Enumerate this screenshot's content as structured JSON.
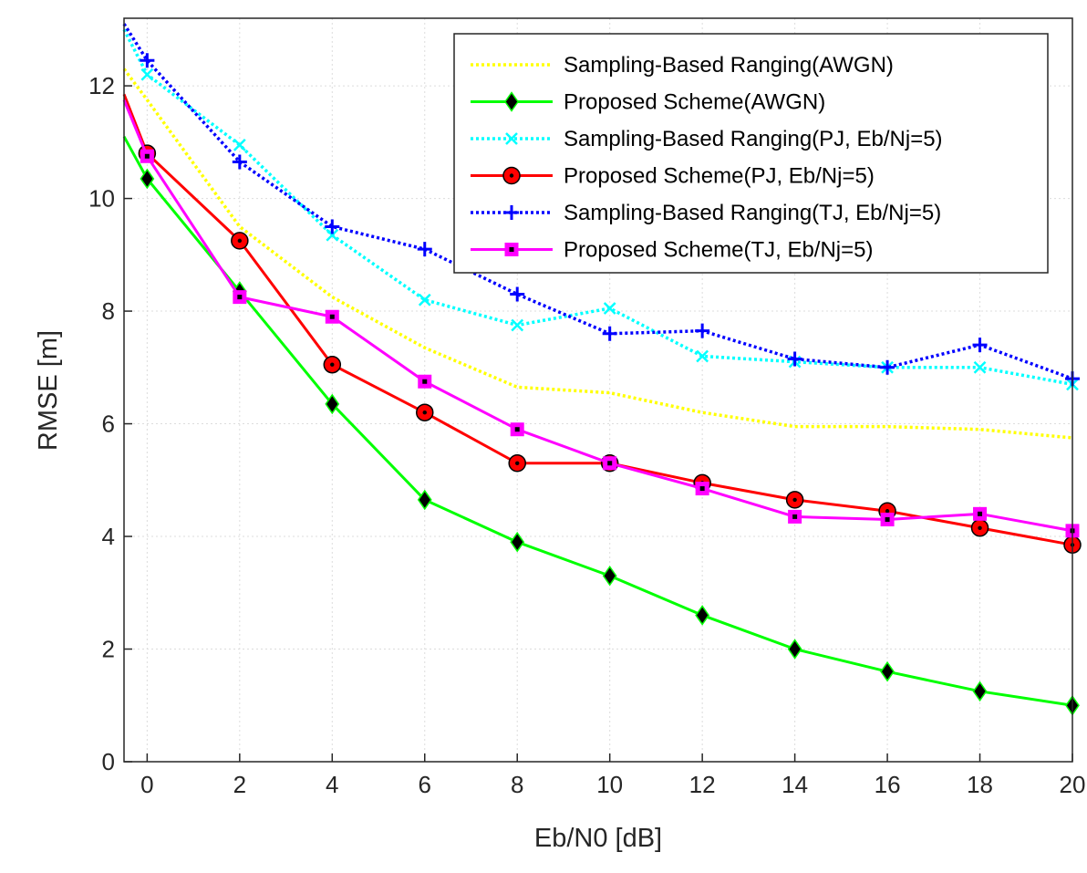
{
  "chart_data": {
    "type": "line",
    "xlabel": "Eb/N0 [dB]",
    "ylabel": "RMSE [m]",
    "xlim": [
      -0.5,
      20
    ],
    "ylim": [
      0,
      13.2
    ],
    "x_ticks": [
      0,
      2,
      4,
      6,
      8,
      10,
      12,
      14,
      16,
      18,
      20
    ],
    "y_ticks": [
      0,
      2,
      4,
      6,
      8,
      10,
      12
    ],
    "grid": true,
    "legend_position": "top-right",
    "x": [
      0,
      2,
      4,
      6,
      8,
      10,
      12,
      14,
      16,
      18,
      20
    ],
    "series": [
      {
        "name": "Sampling-Based Ranging(AWGN)",
        "color": "#ffff00",
        "line": "dotted",
        "marker": "none",
        "extrapolated_start": 12.3,
        "values": [
          11.75,
          9.5,
          8.25,
          7.35,
          6.65,
          6.55,
          6.2,
          5.95,
          5.95,
          5.9,
          5.75
        ]
      },
      {
        "name": "Proposed Scheme(AWGN)",
        "color": "#00ff00",
        "line": "solid",
        "marker": "diamond",
        "extrapolated_start": 11.1,
        "values": [
          10.35,
          8.35,
          6.35,
          4.65,
          3.9,
          3.3,
          2.6,
          2.0,
          1.6,
          1.25,
          1.0
        ]
      },
      {
        "name": "Sampling-Based Ranging(PJ, Eb/Nj=5)",
        "color": "#00ffff",
        "line": "dotted",
        "marker": "x",
        "extrapolated_start": 13.0,
        "values": [
          12.2,
          10.95,
          9.35,
          8.2,
          7.75,
          8.05,
          7.2,
          7.1,
          7.0,
          7.0,
          6.7
        ]
      },
      {
        "name": "Proposed Scheme(PJ, Eb/Nj=5)",
        "color": "#ff0000",
        "line": "solid",
        "marker": "circle",
        "extrapolated_start": 11.85,
        "values": [
          10.8,
          9.25,
          7.05,
          6.2,
          5.3,
          5.3,
          4.95,
          4.65,
          4.45,
          4.15,
          3.85
        ]
      },
      {
        "name": "Sampling-Based Ranging(TJ, Eb/Nj=5)",
        "color": "#0000ff",
        "line": "dotted",
        "marker": "plus",
        "extrapolated_start": 13.1,
        "values": [
          12.45,
          10.65,
          9.5,
          9.1,
          8.3,
          7.6,
          7.65,
          7.15,
          7.0,
          7.4,
          6.8
        ]
      },
      {
        "name": "Proposed Scheme(TJ, Eb/Nj=5)",
        "color": "#ff00ff",
        "line": "solid",
        "marker": "square",
        "extrapolated_start": 11.75,
        "values": [
          10.75,
          8.25,
          7.9,
          6.75,
          5.9,
          5.3,
          4.85,
          4.35,
          4.3,
          4.4,
          4.1
        ]
      }
    ]
  }
}
